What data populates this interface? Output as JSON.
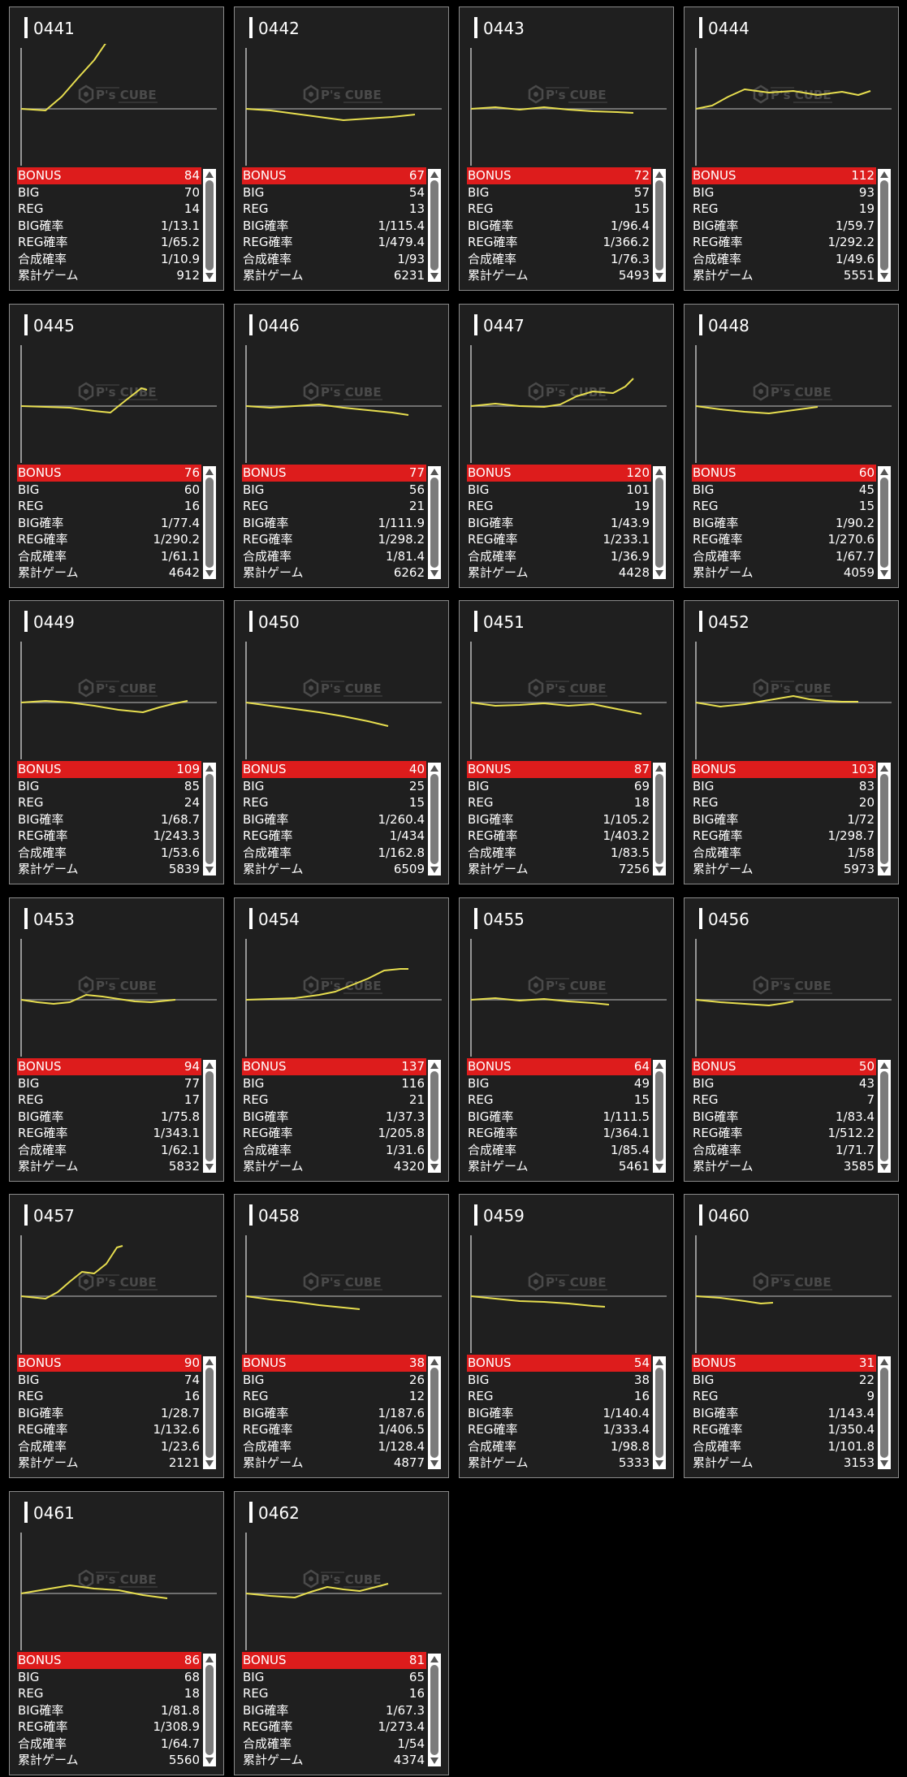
{
  "labels": {
    "bonus": "BONUS",
    "big": "BIG",
    "reg": "REG",
    "big_rate": "BIG確率",
    "reg_rate": "REG確率",
    "combined_rate": "合成確率",
    "total_games": "累計ゲーム"
  },
  "watermark": {
    "brand": "P's CUBE"
  },
  "colors": {
    "bonus_bar": "#dd1c1c",
    "graph_line": "#e7de4f",
    "card_bg": "#1f1f1f",
    "card_border": "#8a8a8a"
  },
  "machines": [
    {
      "no": "0441",
      "bonus": "84",
      "big": "70",
      "reg": "14",
      "big_rate": "1/13.1",
      "reg_rate": "1/65.2",
      "combined_rate": "1/10.9",
      "total_games": "912",
      "trend": [
        [
          0,
          0
        ],
        [
          30,
          -2
        ],
        [
          50,
          15
        ],
        [
          70,
          38
        ],
        [
          90,
          60
        ],
        [
          105,
          82
        ],
        [
          118,
          88
        ]
      ]
    },
    {
      "no": "0442",
      "bonus": "67",
      "big": "54",
      "reg": "13",
      "big_rate": "1/115.4",
      "reg_rate": "1/479.4",
      "combined_rate": "1/93",
      "total_games": "6231",
      "trend": [
        [
          0,
          0
        ],
        [
          30,
          -2
        ],
        [
          60,
          -6
        ],
        [
          90,
          -10
        ],
        [
          120,
          -14
        ],
        [
          150,
          -12
        ],
        [
          180,
          -10
        ],
        [
          208,
          -7
        ]
      ]
    },
    {
      "no": "0443",
      "bonus": "72",
      "big": "57",
      "reg": "15",
      "big_rate": "1/96.4",
      "reg_rate": "1/366.2",
      "combined_rate": "1/76.3",
      "total_games": "5493",
      "trend": [
        [
          0,
          0
        ],
        [
          30,
          2
        ],
        [
          60,
          -1
        ],
        [
          90,
          2
        ],
        [
          120,
          -1
        ],
        [
          150,
          -3
        ],
        [
          180,
          -4
        ],
        [
          200,
          -5
        ]
      ]
    },
    {
      "no": "0444",
      "bonus": "112",
      "big": "93",
      "reg": "19",
      "big_rate": "1/59.7",
      "reg_rate": "1/292.2",
      "combined_rate": "1/49.6",
      "total_games": "5551",
      "trend": [
        [
          0,
          0
        ],
        [
          20,
          4
        ],
        [
          40,
          15
        ],
        [
          60,
          24
        ],
        [
          90,
          20
        ],
        [
          120,
          22
        ],
        [
          150,
          17
        ],
        [
          180,
          21
        ],
        [
          200,
          17
        ],
        [
          215,
          22
        ]
      ]
    },
    {
      "no": "0445",
      "bonus": "76",
      "big": "60",
      "reg": "16",
      "big_rate": "1/77.4",
      "reg_rate": "1/290.2",
      "combined_rate": "1/61.1",
      "total_games": "4642",
      "trend": [
        [
          0,
          0
        ],
        [
          30,
          -1
        ],
        [
          60,
          -2
        ],
        [
          90,
          -6
        ],
        [
          110,
          -8
        ],
        [
          130,
          8
        ],
        [
          148,
          22
        ],
        [
          155,
          20
        ]
      ]
    },
    {
      "no": "0446",
      "bonus": "77",
      "big": "56",
      "reg": "21",
      "big_rate": "1/111.9",
      "reg_rate": "1/298.2",
      "combined_rate": "1/81.4",
      "total_games": "6262",
      "trend": [
        [
          0,
          0
        ],
        [
          30,
          -2
        ],
        [
          60,
          0
        ],
        [
          90,
          2
        ],
        [
          120,
          -2
        ],
        [
          150,
          -5
        ],
        [
          180,
          -8
        ],
        [
          200,
          -11
        ]
      ]
    },
    {
      "no": "0447",
      "bonus": "120",
      "big": "101",
      "reg": "19",
      "big_rate": "1/43.9",
      "reg_rate": "1/233.1",
      "combined_rate": "1/36.9",
      "total_games": "4428",
      "trend": [
        [
          0,
          0
        ],
        [
          30,
          3
        ],
        [
          60,
          0
        ],
        [
          90,
          -1
        ],
        [
          110,
          2
        ],
        [
          130,
          12
        ],
        [
          150,
          18
        ],
        [
          175,
          16
        ],
        [
          190,
          24
        ],
        [
          200,
          34
        ]
      ]
    },
    {
      "no": "0448",
      "bonus": "60",
      "big": "45",
      "reg": "15",
      "big_rate": "1/90.2",
      "reg_rate": "1/270.6",
      "combined_rate": "1/67.7",
      "total_games": "4059",
      "trend": [
        [
          0,
          0
        ],
        [
          30,
          -4
        ],
        [
          60,
          -7
        ],
        [
          90,
          -9
        ],
        [
          120,
          -5
        ],
        [
          150,
          -1
        ]
      ]
    },
    {
      "no": "0449",
      "bonus": "109",
      "big": "85",
      "reg": "24",
      "big_rate": "1/68.7",
      "reg_rate": "1/243.3",
      "combined_rate": "1/53.6",
      "total_games": "5839",
      "trend": [
        [
          0,
          0
        ],
        [
          30,
          2
        ],
        [
          60,
          0
        ],
        [
          90,
          -4
        ],
        [
          120,
          -9
        ],
        [
          150,
          -12
        ],
        [
          170,
          -6
        ],
        [
          190,
          -1
        ],
        [
          205,
          2
        ]
      ]
    },
    {
      "no": "0450",
      "bonus": "40",
      "big": "25",
      "reg": "15",
      "big_rate": "1/260.4",
      "reg_rate": "1/434",
      "combined_rate": "1/162.8",
      "total_games": "6509",
      "trend": [
        [
          0,
          0
        ],
        [
          30,
          -4
        ],
        [
          60,
          -8
        ],
        [
          90,
          -12
        ],
        [
          120,
          -17
        ],
        [
          150,
          -23
        ],
        [
          175,
          -29
        ]
      ]
    },
    {
      "no": "0451",
      "bonus": "87",
      "big": "69",
      "reg": "18",
      "big_rate": "1/105.2",
      "reg_rate": "1/403.2",
      "combined_rate": "1/83.5",
      "total_games": "7256",
      "trend": [
        [
          0,
          0
        ],
        [
          30,
          -4
        ],
        [
          60,
          -3
        ],
        [
          90,
          -1
        ],
        [
          120,
          -4
        ],
        [
          150,
          -2
        ],
        [
          180,
          -8
        ],
        [
          210,
          -14
        ]
      ]
    },
    {
      "no": "0452",
      "bonus": "103",
      "big": "83",
      "reg": "20",
      "big_rate": "1/72",
      "reg_rate": "1/298.7",
      "combined_rate": "1/58",
      "total_games": "5973",
      "trend": [
        [
          0,
          0
        ],
        [
          30,
          -5
        ],
        [
          60,
          -2
        ],
        [
          90,
          3
        ],
        [
          120,
          8
        ],
        [
          140,
          4
        ],
        [
          160,
          2
        ],
        [
          180,
          1
        ],
        [
          200,
          1
        ]
      ]
    },
    {
      "no": "0453",
      "bonus": "94",
      "big": "77",
      "reg": "17",
      "big_rate": "1/75.8",
      "reg_rate": "1/343.1",
      "combined_rate": "1/62.1",
      "total_games": "5832",
      "trend": [
        [
          0,
          0
        ],
        [
          20,
          -3
        ],
        [
          40,
          -5
        ],
        [
          60,
          -3
        ],
        [
          80,
          6
        ],
        [
          100,
          4
        ],
        [
          120,
          1
        ],
        [
          140,
          -2
        ],
        [
          160,
          -3
        ],
        [
          190,
          0
        ]
      ]
    },
    {
      "no": "0454",
      "bonus": "137",
      "big": "116",
      "reg": "21",
      "big_rate": "1/37.3",
      "reg_rate": "1/205.8",
      "combined_rate": "1/31.6",
      "total_games": "4320",
      "trend": [
        [
          0,
          0
        ],
        [
          30,
          1
        ],
        [
          60,
          2
        ],
        [
          90,
          6
        ],
        [
          110,
          10
        ],
        [
          130,
          18
        ],
        [
          150,
          26
        ],
        [
          170,
          36
        ],
        [
          190,
          38
        ],
        [
          200,
          38
        ]
      ]
    },
    {
      "no": "0455",
      "bonus": "64",
      "big": "49",
      "reg": "15",
      "big_rate": "1/111.5",
      "reg_rate": "1/364.1",
      "combined_rate": "1/85.4",
      "total_games": "5461",
      "trend": [
        [
          0,
          0
        ],
        [
          30,
          2
        ],
        [
          60,
          -1
        ],
        [
          90,
          1
        ],
        [
          120,
          -2
        ],
        [
          150,
          -4
        ],
        [
          170,
          -6
        ]
      ]
    },
    {
      "no": "0456",
      "bonus": "50",
      "big": "43",
      "reg": "7",
      "big_rate": "1/83.4",
      "reg_rate": "1/512.2",
      "combined_rate": "1/71.7",
      "total_games": "3585",
      "trend": [
        [
          0,
          0
        ],
        [
          30,
          -3
        ],
        [
          60,
          -5
        ],
        [
          90,
          -7
        ],
        [
          110,
          -4
        ],
        [
          120,
          -2
        ]
      ]
    },
    {
      "no": "0457",
      "bonus": "90",
      "big": "74",
      "reg": "16",
      "big_rate": "1/28.7",
      "reg_rate": "1/132.6",
      "combined_rate": "1/23.6",
      "total_games": "2121",
      "trend": [
        [
          0,
          0
        ],
        [
          30,
          -3
        ],
        [
          45,
          5
        ],
        [
          60,
          18
        ],
        [
          75,
          30
        ],
        [
          90,
          28
        ],
        [
          105,
          40
        ],
        [
          118,
          60
        ],
        [
          125,
          62
        ]
      ]
    },
    {
      "no": "0458",
      "bonus": "38",
      "big": "26",
      "reg": "12",
      "big_rate": "1/187.6",
      "reg_rate": "1/406.5",
      "combined_rate": "1/128.4",
      "total_games": "4877",
      "trend": [
        [
          0,
          0
        ],
        [
          30,
          -4
        ],
        [
          60,
          -7
        ],
        [
          90,
          -11
        ],
        [
          120,
          -14
        ],
        [
          140,
          -16
        ]
      ]
    },
    {
      "no": "0459",
      "bonus": "54",
      "big": "38",
      "reg": "16",
      "big_rate": "1/140.4",
      "reg_rate": "1/333.4",
      "combined_rate": "1/98.8",
      "total_games": "5333",
      "trend": [
        [
          0,
          0
        ],
        [
          30,
          -3
        ],
        [
          60,
          -6
        ],
        [
          90,
          -7
        ],
        [
          120,
          -9
        ],
        [
          150,
          -12
        ],
        [
          165,
          -13
        ]
      ]
    },
    {
      "no": "0460",
      "bonus": "31",
      "big": "22",
      "reg": "9",
      "big_rate": "1/143.4",
      "reg_rate": "1/350.4",
      "combined_rate": "1/101.8",
      "total_games": "3153",
      "trend": [
        [
          0,
          0
        ],
        [
          30,
          -2
        ],
        [
          60,
          -6
        ],
        [
          80,
          -9
        ],
        [
          95,
          -8
        ]
      ]
    },
    {
      "no": "0461",
      "bonus": "86",
      "big": "68",
      "reg": "18",
      "big_rate": "1/81.8",
      "reg_rate": "1/308.9",
      "combined_rate": "1/64.7",
      "total_games": "5560",
      "trend": [
        [
          0,
          0
        ],
        [
          30,
          5
        ],
        [
          60,
          10
        ],
        [
          90,
          6
        ],
        [
          120,
          4
        ],
        [
          150,
          -2
        ],
        [
          180,
          -6
        ]
      ]
    },
    {
      "no": "0462",
      "bonus": "81",
      "big": "65",
      "reg": "16",
      "big_rate": "1/67.3",
      "reg_rate": "1/273.4",
      "combined_rate": "1/54",
      "total_games": "4374",
      "trend": [
        [
          0,
          0
        ],
        [
          30,
          -3
        ],
        [
          60,
          -5
        ],
        [
          80,
          2
        ],
        [
          100,
          8
        ],
        [
          120,
          5
        ],
        [
          140,
          3
        ],
        [
          160,
          8
        ],
        [
          175,
          12
        ]
      ]
    }
  ]
}
